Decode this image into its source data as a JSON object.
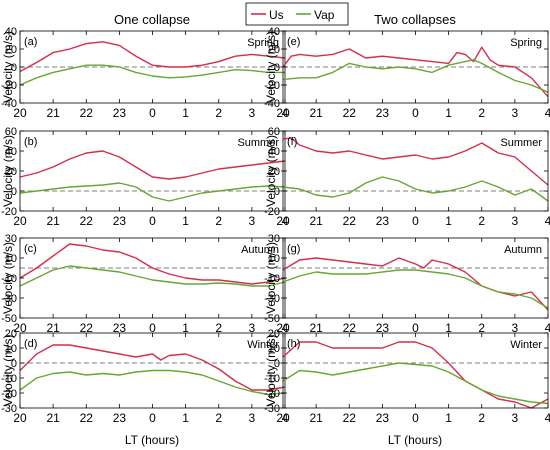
{
  "figure": {
    "col_titles": [
      "One collapse",
      "Two collapses"
    ],
    "legend": [
      {
        "label": "Us",
        "color": "#d62d4b"
      },
      {
        "label": "Vap",
        "color": "#66a832"
      }
    ],
    "xlabel": "LT (hours)",
    "ylabel": "Velocity (m/s)"
  },
  "chart_data": [
    {
      "type": "line",
      "panel": "(a)",
      "season": "Spring",
      "column": "One collapse",
      "xlim": [
        20,
        28
      ],
      "xticklabels": [
        "20",
        "21",
        "22",
        "23",
        "0",
        "1",
        "2",
        "3",
        "4"
      ],
      "ylim": [
        -40,
        40
      ],
      "yticks": [
        -40,
        -20,
        0,
        20,
        40
      ],
      "series": [
        {
          "name": "Us",
          "x": [
            20,
            20.5,
            21,
            21.5,
            22,
            22.5,
            23,
            23.5,
            24,
            24.5,
            25,
            25.5,
            26,
            26.5,
            27,
            27.5,
            28
          ],
          "y": [
            -5,
            5,
            16,
            20,
            26,
            28,
            24,
            12,
            2,
            0,
            0,
            2,
            6,
            12,
            14,
            12,
            10
          ]
        },
        {
          "name": "Vap",
          "x": [
            20,
            20.5,
            21,
            21.5,
            22,
            22.5,
            23,
            23.5,
            24,
            24.5,
            25,
            25.5,
            26,
            26.5,
            27,
            27.5,
            28
          ],
          "y": [
            -20,
            -12,
            -6,
            -2,
            2,
            2,
            0,
            -6,
            -10,
            -12,
            -11,
            -9,
            -6,
            -3,
            -4,
            -6,
            -6
          ]
        }
      ]
    },
    {
      "type": "line",
      "panel": "(e)",
      "season": "Spring",
      "column": "Two collapses",
      "xlim": [
        20,
        28
      ],
      "xticklabels": [
        "20",
        "21",
        "22",
        "23",
        "0",
        "1",
        "2",
        "3",
        "4"
      ],
      "ylim": [
        -40,
        40
      ],
      "yticks": [
        -40,
        -20,
        0,
        20,
        40
      ],
      "series": [
        {
          "name": "Us",
          "x": [
            20,
            20.25,
            20.5,
            21,
            21.5,
            22,
            22.5,
            23,
            23.5,
            24,
            24.5,
            25,
            25.25,
            25.5,
            25.75,
            26,
            26.25,
            26.5,
            27,
            27.5,
            28
          ],
          "y": [
            0,
            12,
            14,
            12,
            14,
            20,
            10,
            12,
            10,
            8,
            6,
            4,
            16,
            14,
            6,
            22,
            8,
            2,
            0,
            -12,
            -33
          ]
        },
        {
          "name": "Vap",
          "x": [
            20,
            20.5,
            21,
            21.5,
            22,
            22.5,
            23,
            23.5,
            24,
            24.5,
            25,
            25.5,
            25.75,
            26,
            26.5,
            27,
            27.5,
            28
          ],
          "y": [
            -14,
            -12,
            -12,
            -6,
            4,
            0,
            -2,
            0,
            -2,
            -6,
            2,
            6,
            8,
            4,
            -6,
            -15,
            -20,
            -28
          ]
        }
      ]
    },
    {
      "type": "line",
      "panel": "(b)",
      "season": "Summer",
      "column": "One collapse",
      "xlim": [
        20,
        28
      ],
      "xticklabels": [
        "20",
        "21",
        "22",
        "23",
        "0",
        "1",
        "2",
        "3",
        "4"
      ],
      "ylim": [
        -20,
        60
      ],
      "yticks": [
        -20,
        0,
        20,
        40,
        60
      ],
      "series": [
        {
          "name": "Us",
          "x": [
            20,
            20.5,
            21,
            21.5,
            22,
            22.5,
            23,
            23.5,
            24,
            24.5,
            25,
            25.5,
            26,
            26.5,
            27,
            27.5,
            28
          ],
          "y": [
            14,
            18,
            24,
            32,
            38,
            40,
            34,
            24,
            14,
            12,
            14,
            18,
            22,
            24,
            26,
            28,
            30
          ]
        },
        {
          "name": "Vap",
          "x": [
            20,
            20.5,
            21,
            21.5,
            22,
            22.5,
            23,
            23.5,
            24,
            24.5,
            25,
            25.5,
            26,
            26.5,
            27,
            27.5,
            28
          ],
          "y": [
            -2,
            0,
            2,
            4,
            5,
            6,
            8,
            4,
            -6,
            -10,
            -6,
            -2,
            0,
            2,
            4,
            5,
            4
          ]
        }
      ]
    },
    {
      "type": "line",
      "panel": "(f)",
      "season": "Summer",
      "column": "Two collapses",
      "xlim": [
        20,
        28
      ],
      "xticklabels": [
        "20",
        "21",
        "22",
        "23",
        "0",
        "1",
        "2",
        "3",
        "4"
      ],
      "ylim": [
        -20,
        60
      ],
      "yticks": [
        -20,
        0,
        20,
        40,
        60
      ],
      "series": [
        {
          "name": "Us",
          "x": [
            20,
            20.25,
            20.5,
            21,
            21.5,
            22,
            22.5,
            23,
            23.5,
            24,
            24.5,
            25,
            25.5,
            26,
            26.5,
            27,
            27.5,
            28
          ],
          "y": [
            52,
            53,
            46,
            40,
            38,
            40,
            36,
            32,
            34,
            36,
            32,
            34,
            40,
            48,
            38,
            34,
            20,
            6
          ]
        },
        {
          "name": "Vap",
          "x": [
            20,
            20.5,
            21,
            21.5,
            22,
            22.5,
            23,
            23.5,
            24,
            24.5,
            25,
            25.5,
            26,
            26.5,
            27,
            27.5,
            28
          ],
          "y": [
            4,
            2,
            -4,
            -6,
            -2,
            8,
            14,
            10,
            2,
            -2,
            0,
            4,
            10,
            4,
            -4,
            2,
            -10
          ]
        }
      ]
    },
    {
      "type": "line",
      "panel": "(c)",
      "season": "Autumn",
      "column": "One collapse",
      "xlim": [
        20,
        28
      ],
      "xticklabels": [
        "20",
        "21",
        "22",
        "23",
        "0",
        "1",
        "2",
        "3",
        "4"
      ],
      "ylim": [
        -50,
        30
      ],
      "yticks": [
        -50,
        -30,
        -10,
        10,
        30
      ],
      "series": [
        {
          "name": "Us",
          "x": [
            20,
            20.5,
            21,
            21.5,
            22,
            22.5,
            23,
            23.5,
            24,
            24.5,
            25,
            25.5,
            26,
            26.5,
            27,
            27.5,
            28
          ],
          "y": [
            -10,
            0,
            12,
            24,
            22,
            18,
            16,
            10,
            0,
            -6,
            -10,
            -12,
            -12,
            -14,
            -16,
            -14,
            -10
          ]
        },
        {
          "name": "Vap",
          "x": [
            20,
            20.5,
            21,
            21.5,
            22,
            22.5,
            23,
            23.5,
            24,
            24.5,
            25,
            25.5,
            26,
            26.5,
            27,
            27.5,
            28
          ],
          "y": [
            -18,
            -10,
            -2,
            2,
            0,
            -2,
            -4,
            -8,
            -12,
            -14,
            -16,
            -16,
            -15,
            -16,
            -18,
            -18,
            -14
          ]
        }
      ]
    },
    {
      "type": "line",
      "panel": "(g)",
      "season": "Autumn",
      "column": "Two collapses",
      "xlim": [
        20,
        28
      ],
      "xticklabels": [
        "20",
        "21",
        "22",
        "23",
        "0",
        "1",
        "2",
        "3",
        "4"
      ],
      "ylim": [
        -50,
        30
      ],
      "yticks": [
        -50,
        -30,
        -10,
        10,
        30
      ],
      "series": [
        {
          "name": "Us",
          "x": [
            20,
            20.5,
            21,
            21.5,
            22,
            22.5,
            23,
            23.5,
            24,
            24.25,
            24.5,
            25,
            25.5,
            26,
            26.5,
            27,
            27.5,
            28
          ],
          "y": [
            -2,
            8,
            10,
            8,
            6,
            4,
            2,
            10,
            4,
            0,
            8,
            4,
            -4,
            -18,
            -24,
            -28,
            -24,
            -42
          ]
        },
        {
          "name": "Vap",
          "x": [
            20,
            20.5,
            21,
            21.5,
            22,
            22.5,
            23,
            23.5,
            24,
            24.5,
            25,
            25.5,
            26,
            26.5,
            27,
            27.5,
            28
          ],
          "y": [
            -14,
            -8,
            -4,
            -6,
            -6,
            -6,
            -4,
            -2,
            -2,
            -4,
            -6,
            -10,
            -18,
            -24,
            -26,
            -30,
            -40
          ]
        }
      ]
    },
    {
      "type": "line",
      "panel": "(d)",
      "season": "Winter",
      "column": "One collapse",
      "xlim": [
        20,
        28
      ],
      "xticklabels": [
        "20",
        "21",
        "22",
        "23",
        "0",
        "1",
        "2",
        "3",
        "4"
      ],
      "ylim": [
        -30,
        20
      ],
      "yticks": [
        -30,
        -20,
        -10,
        0,
        10,
        20
      ],
      "series": [
        {
          "name": "Us",
          "x": [
            20,
            20.5,
            21,
            21.5,
            22,
            22.5,
            23,
            23.5,
            24,
            24.25,
            24.5,
            25,
            25.5,
            26,
            26.5,
            27,
            27.5,
            28
          ],
          "y": [
            -5,
            6,
            12,
            12,
            10,
            8,
            6,
            4,
            6,
            2,
            5,
            6,
            2,
            -4,
            -12,
            -18,
            -18,
            -16
          ]
        },
        {
          "name": "Vap",
          "x": [
            20,
            20.5,
            21,
            21.5,
            22,
            22.5,
            23,
            23.5,
            24,
            24.5,
            25,
            25.5,
            26,
            26.5,
            27,
            27.5,
            28
          ],
          "y": [
            -18,
            -10,
            -7,
            -6,
            -8,
            -7,
            -8,
            -6,
            -5,
            -5,
            -6,
            -8,
            -12,
            -16,
            -19,
            -21,
            -20
          ]
        }
      ]
    },
    {
      "type": "line",
      "panel": "(h)",
      "season": "Winter",
      "column": "Two collapses",
      "xlim": [
        20,
        28
      ],
      "xticklabels": [
        "20",
        "21",
        "22",
        "23",
        "0",
        "1",
        "2",
        "3",
        "4"
      ],
      "ylim": [
        -30,
        20
      ],
      "yticks": [
        -30,
        -20,
        -10,
        0,
        10,
        20
      ],
      "series": [
        {
          "name": "Us",
          "x": [
            20,
            20.5,
            21,
            21.5,
            22,
            22.5,
            23,
            23.5,
            24,
            24.5,
            25,
            25.5,
            26,
            26.5,
            27,
            27.5,
            28
          ],
          "y": [
            4,
            14,
            14,
            10,
            10,
            10,
            10,
            14,
            14,
            10,
            0,
            -12,
            -18,
            -24,
            -26,
            -30,
            -24
          ]
        },
        {
          "name": "Vap",
          "x": [
            20,
            20.5,
            21,
            21.5,
            22,
            22.5,
            23,
            23.5,
            24,
            24.5,
            25,
            25.5,
            26,
            26.5,
            27,
            27.5,
            28
          ],
          "y": [
            -12,
            -5,
            -6,
            -8,
            -6,
            -4,
            -2,
            0,
            -1,
            -2,
            -6,
            -12,
            -18,
            -22,
            -24,
            -26,
            -27
          ]
        }
      ]
    }
  ]
}
